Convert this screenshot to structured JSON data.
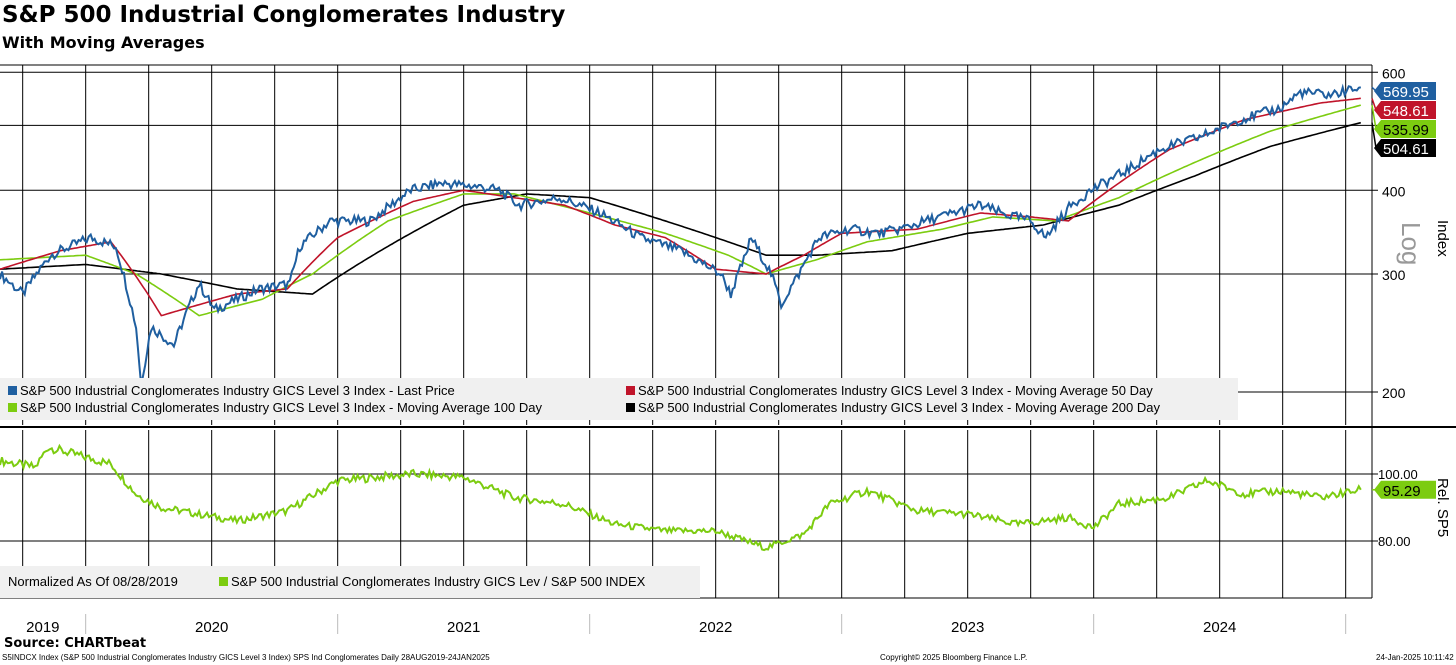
{
  "header": {
    "title": "S&P 500 Industrial Conglomerates Industry",
    "subtitle": "With Moving Averages"
  },
  "footer": {
    "source": "Source: CHARTbeat",
    "description": "S5INDCX Index (S&P 500 Industrial Conglomerates Industry GICS Level 3 Index) SPS Ind Conglomerates  Daily 28AUG2019-24JAN2025",
    "copyright": "Copyright© 2025 Bloomberg Finance L.P.",
    "timestamp": "24-Jan-2025 10:11:42"
  },
  "colors": {
    "price": "#1f5fa0",
    "ma50": "#c0142a",
    "ma100": "#7ccc10",
    "ma200": "#000000",
    "rel": "#7ccc10"
  },
  "chart_data": [
    {
      "type": "line",
      "title": "S&P 500 Industrial Conglomerates Industry",
      "ylabel": "Index",
      "scale_label": "Log",
      "yscale": "log",
      "ylim": [
        175,
        640
      ],
      "yticks": [
        200,
        300,
        400,
        600
      ],
      "grid": true,
      "x_categories": [
        "2019",
        "2020",
        "2021",
        "2022",
        "2023",
        "2024"
      ],
      "legend": [
        "S&P 500 Industrial Conglomerates Industry GICS Level 3 Index - Last Price",
        "S&P 500 Industrial Conglomerates Industry GICS Level 3 Index - Moving Average 50 Day",
        "S&P 500 Industrial Conglomerates Industry GICS Level 3 Index - Moving Average 100 Day",
        "S&P 500 Industrial Conglomerates Industry GICS Level 3 Index - Moving Average 200 Day"
      ],
      "last_labels": [
        "569.95",
        "548.61",
        "535.99",
        "504.61"
      ],
      "series": [
        {
          "name": "Last Price",
          "color": "#1f5fa0",
          "points": [
            [
              2019.66,
              300
            ],
            [
              2019.75,
              280
            ],
            [
              2019.86,
              320
            ],
            [
              2020.02,
              340
            ],
            [
              2020.12,
              330
            ],
            [
              2020.2,
              250
            ],
            [
              2020.22,
              205
            ],
            [
              2020.26,
              250
            ],
            [
              2020.35,
              235
            ],
            [
              2020.45,
              290
            ],
            [
              2020.51,
              265
            ],
            [
              2020.69,
              285
            ],
            [
              2020.81,
              290
            ],
            [
              2020.85,
              330
            ],
            [
              2020.97,
              360
            ],
            [
              2021.13,
              360
            ],
            [
              2021.29,
              400
            ],
            [
              2021.41,
              410
            ],
            [
              2021.56,
              405
            ],
            [
              2021.64,
              400
            ],
            [
              2021.72,
              380
            ],
            [
              2021.88,
              390
            ],
            [
              2022.04,
              370
            ],
            [
              2022.2,
              340
            ],
            [
              2022.36,
              325
            ],
            [
              2022.52,
              300
            ],
            [
              2022.56,
              280
            ],
            [
              2022.62,
              320
            ],
            [
              2022.64,
              340
            ],
            [
              2022.72,
              300
            ],
            [
              2022.76,
              270
            ],
            [
              2022.83,
              300
            ],
            [
              2022.91,
              340
            ],
            [
              2023.03,
              350
            ],
            [
              2023.15,
              345
            ],
            [
              2023.23,
              350
            ],
            [
              2023.39,
              365
            ],
            [
              2023.55,
              380
            ],
            [
              2023.63,
              370
            ],
            [
              2023.75,
              360
            ],
            [
              2023.81,
              340
            ],
            [
              2023.91,
              380
            ],
            [
              2023.99,
              400
            ],
            [
              2024.14,
              430
            ],
            [
              2024.26,
              460
            ],
            [
              2024.42,
              480
            ],
            [
              2024.58,
              510
            ],
            [
              2024.74,
              530
            ],
            [
              2024.82,
              560
            ],
            [
              2024.94,
              555
            ],
            [
              2025.06,
              569.95
            ]
          ]
        },
        {
          "name": "Moving Average 50 Day",
          "color": "#c0142a",
          "points": [
            [
              2019.66,
              305
            ],
            [
              2019.9,
              325
            ],
            [
              2020.1,
              335
            ],
            [
              2020.3,
              260
            ],
            [
              2020.45,
              270
            ],
            [
              2020.6,
              280
            ],
            [
              2020.8,
              285
            ],
            [
              2021.0,
              340
            ],
            [
              2021.3,
              385
            ],
            [
              2021.5,
              400
            ],
            [
              2021.7,
              390
            ],
            [
              2021.9,
              380
            ],
            [
              2022.1,
              355
            ],
            [
              2022.3,
              340
            ],
            [
              2022.5,
              305
            ],
            [
              2022.7,
              300
            ],
            [
              2022.85,
              320
            ],
            [
              2023.0,
              345
            ],
            [
              2023.3,
              350
            ],
            [
              2023.55,
              370
            ],
            [
              2023.75,
              365
            ],
            [
              2023.9,
              360
            ],
            [
              2024.1,
              410
            ],
            [
              2024.3,
              460
            ],
            [
              2024.6,
              510
            ],
            [
              2024.9,
              540
            ],
            [
              2025.06,
              548.61
            ]
          ]
        },
        {
          "name": "Moving Average 100 Day",
          "color": "#7ccc10",
          "points": [
            [
              2019.66,
              315
            ],
            [
              2020.0,
              320
            ],
            [
              2020.2,
              300
            ],
            [
              2020.45,
              260
            ],
            [
              2020.7,
              275
            ],
            [
              2020.9,
              300
            ],
            [
              2021.2,
              360
            ],
            [
              2021.5,
              395
            ],
            [
              2021.7,
              395
            ],
            [
              2022.0,
              370
            ],
            [
              2022.3,
              345
            ],
            [
              2022.55,
              320
            ],
            [
              2022.7,
              300
            ],
            [
              2022.9,
              315
            ],
            [
              2023.1,
              335
            ],
            [
              2023.4,
              350
            ],
            [
              2023.6,
              365
            ],
            [
              2023.85,
              360
            ],
            [
              2024.1,
              390
            ],
            [
              2024.4,
              440
            ],
            [
              2024.7,
              490
            ],
            [
              2025.06,
              535.99
            ]
          ]
        },
        {
          "name": "Moving Average 200 Day",
          "color": "#000000",
          "points": [
            [
              2019.66,
              305
            ],
            [
              2020.0,
              310
            ],
            [
              2020.3,
              300
            ],
            [
              2020.6,
              285
            ],
            [
              2020.9,
              280
            ],
            [
              2021.2,
              330
            ],
            [
              2021.5,
              380
            ],
            [
              2021.75,
              395
            ],
            [
              2022.0,
              390
            ],
            [
              2022.25,
              365
            ],
            [
              2022.5,
              340
            ],
            [
              2022.7,
              320
            ],
            [
              2022.9,
              320
            ],
            [
              2023.2,
              325
            ],
            [
              2023.5,
              345
            ],
            [
              2023.8,
              355
            ],
            [
              2024.1,
              380
            ],
            [
              2024.4,
              420
            ],
            [
              2024.7,
              465
            ],
            [
              2025.06,
              504.61
            ]
          ]
        }
      ]
    },
    {
      "type": "line",
      "ylabel": "Rel. SP5",
      "ylim": [
        63,
        112
      ],
      "yticks": [
        "80.00",
        "100.00"
      ],
      "grid": true,
      "legend_note": "Normalized As Of 08/28/2019",
      "legend": [
        "S&P 500 Industrial Conglomerates Industry GICS Lev / S&P 500 INDEX"
      ],
      "last_label": "95.29",
      "series": [
        {
          "name": "Relative",
          "color": "#7ccc10",
          "points": [
            [
              2019.66,
              104
            ],
            [
              2019.8,
              102
            ],
            [
              2019.85,
              108
            ],
            [
              2019.95,
              106
            ],
            [
              2020.1,
              103
            ],
            [
              2020.2,
              94
            ],
            [
              2020.3,
              90
            ],
            [
              2020.45,
              88
            ],
            [
              2020.6,
              86
            ],
            [
              2020.8,
              89
            ],
            [
              2021.0,
              98
            ],
            [
              2021.15,
              99
            ],
            [
              2021.3,
              100
            ],
            [
              2021.5,
              99
            ],
            [
              2021.7,
              93
            ],
            [
              2021.9,
              91
            ],
            [
              2022.1,
              85
            ],
            [
              2022.3,
              83
            ],
            [
              2022.5,
              83
            ],
            [
              2022.7,
              78
            ],
            [
              2022.85,
              82
            ],
            [
              2022.95,
              91
            ],
            [
              2023.1,
              95
            ],
            [
              2023.3,
              89
            ],
            [
              2023.5,
              88
            ],
            [
              2023.7,
              85
            ],
            [
              2023.9,
              87
            ],
            [
              2024.0,
              84
            ],
            [
              2024.1,
              91
            ],
            [
              2024.3,
              93
            ],
            [
              2024.45,
              98
            ],
            [
              2024.6,
              94
            ],
            [
              2024.75,
              95
            ],
            [
              2024.9,
              93
            ],
            [
              2025.06,
              95.29
            ]
          ]
        }
      ]
    }
  ]
}
